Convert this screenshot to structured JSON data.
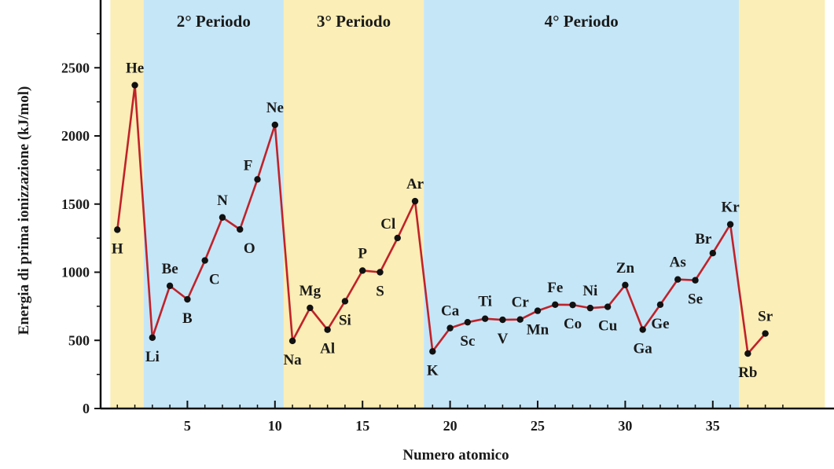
{
  "chart_data": {
    "type": "line",
    "xlabel": "Numero atomico",
    "ylabel": "Energia di prima ionizzazione (kJ/mol)",
    "xlim": [
      0,
      40
    ],
    "ylim": [
      0,
      2800
    ],
    "x_ticks": [
      5,
      10,
      15,
      20,
      25,
      30,
      35
    ],
    "y_ticks": [
      0,
      500,
      1000,
      1500,
      2000,
      2500
    ],
    "colors": {
      "line": "#c0222a",
      "point": "#111111",
      "band_yellow": "#fbeeb6",
      "band_blue": "#c5e6f7"
    },
    "periods": [
      {
        "label": "",
        "start": 0.6,
        "end": 2.5,
        "color": "yellow"
      },
      {
        "label": "2° Periodo",
        "start": 2.5,
        "end": 10.5,
        "color": "blue"
      },
      {
        "label": "3° Periodo",
        "start": 10.5,
        "end": 18.5,
        "color": "yellow"
      },
      {
        "label": "4° Periodo",
        "start": 18.5,
        "end": 36.5,
        "color": "blue"
      },
      {
        "label": "",
        "start": 36.5,
        "end": 41.4,
        "color": "yellow"
      }
    ],
    "series": [
      {
        "points": [
          {
            "x": 1,
            "y": 1312,
            "label": "H",
            "pos": "below"
          },
          {
            "x": 2,
            "y": 2372,
            "label": "He",
            "pos": "above"
          },
          {
            "x": 3,
            "y": 520,
            "label": "Li",
            "pos": "below"
          },
          {
            "x": 4,
            "y": 900,
            "label": "Be",
            "pos": "above"
          },
          {
            "x": 5,
            "y": 801,
            "label": "B",
            "pos": "below"
          },
          {
            "x": 6,
            "y": 1086,
            "label": "C",
            "pos": "belowright"
          },
          {
            "x": 7,
            "y": 1402,
            "label": "N",
            "pos": "above"
          },
          {
            "x": 8,
            "y": 1314,
            "label": "O",
            "pos": "belowright"
          },
          {
            "x": 9,
            "y": 1681,
            "label": "F",
            "pos": "aboveleft"
          },
          {
            "x": 10,
            "y": 2081,
            "label": "Ne",
            "pos": "above"
          },
          {
            "x": 11,
            "y": 496,
            "label": "Na",
            "pos": "below"
          },
          {
            "x": 12,
            "y": 738,
            "label": "Mg",
            "pos": "above"
          },
          {
            "x": 13,
            "y": 578,
            "label": "Al",
            "pos": "below"
          },
          {
            "x": 14,
            "y": 787,
            "label": "Si",
            "pos": "below"
          },
          {
            "x": 15,
            "y": 1012,
            "label": "P",
            "pos": "above"
          },
          {
            "x": 16,
            "y": 1000,
            "label": "S",
            "pos": "below"
          },
          {
            "x": 17,
            "y": 1251,
            "label": "Cl",
            "pos": "aboveleft"
          },
          {
            "x": 18,
            "y": 1521,
            "label": "Ar",
            "pos": "above"
          },
          {
            "x": 19,
            "y": 419,
            "label": "K",
            "pos": "below"
          },
          {
            "x": 20,
            "y": 590,
            "label": "Ca",
            "pos": "above"
          },
          {
            "x": 21,
            "y": 633,
            "label": "Sc",
            "pos": "below"
          },
          {
            "x": 22,
            "y": 659,
            "label": "Ti",
            "pos": "above"
          },
          {
            "x": 23,
            "y": 651,
            "label": "V",
            "pos": "below"
          },
          {
            "x": 24,
            "y": 653,
            "label": "Cr",
            "pos": "above"
          },
          {
            "x": 25,
            "y": 717,
            "label": "Mn",
            "pos": "below"
          },
          {
            "x": 26,
            "y": 762,
            "label": "Fe",
            "pos": "above"
          },
          {
            "x": 27,
            "y": 760,
            "label": "Co",
            "pos": "below"
          },
          {
            "x": 28,
            "y": 737,
            "label": "Ni",
            "pos": "above"
          },
          {
            "x": 29,
            "y": 746,
            "label": "Cu",
            "pos": "below"
          },
          {
            "x": 30,
            "y": 906,
            "label": "Zn",
            "pos": "above"
          },
          {
            "x": 31,
            "y": 579,
            "label": "Ga",
            "pos": "below"
          },
          {
            "x": 32,
            "y": 762,
            "label": "Ge",
            "pos": "below"
          },
          {
            "x": 33,
            "y": 947,
            "label": "As",
            "pos": "above"
          },
          {
            "x": 34,
            "y": 941,
            "label": "Se",
            "pos": "below"
          },
          {
            "x": 35,
            "y": 1140,
            "label": "Br",
            "pos": "aboveleft"
          },
          {
            "x": 36,
            "y": 1351,
            "label": "Kr",
            "pos": "above"
          },
          {
            "x": 37,
            "y": 403,
            "label": "Rb",
            "pos": "below"
          },
          {
            "x": 38,
            "y": 550,
            "label": "Sr",
            "pos": "above"
          }
        ]
      }
    ]
  }
}
